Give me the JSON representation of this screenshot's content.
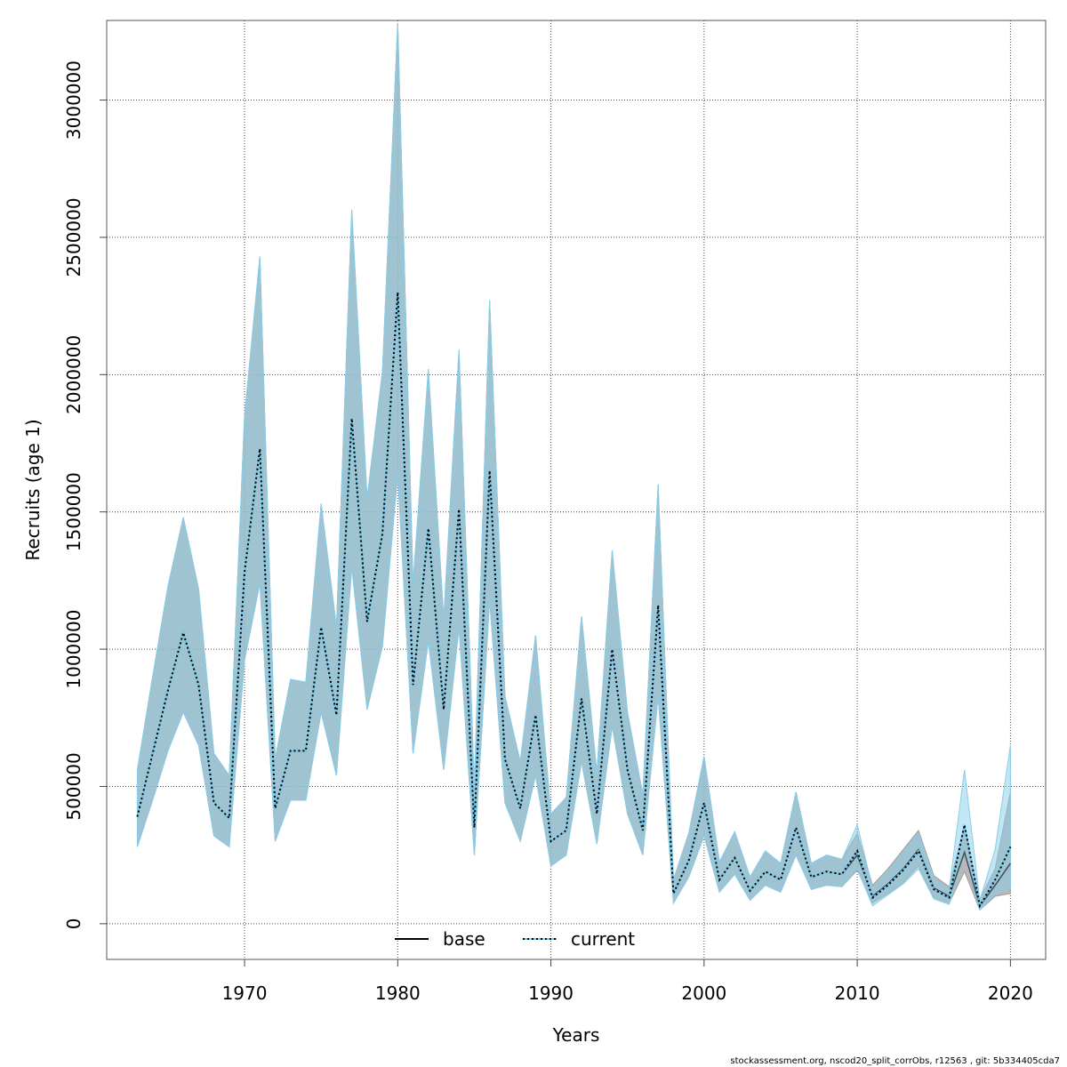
{
  "chart_data": {
    "type": "line",
    "title": "",
    "xlabel": "Years",
    "ylabel": "Recruits (age 1)",
    "xlim": [
      1961,
      2022.3
    ],
    "ylim": [
      -130000,
      3290000
    ],
    "grid": true,
    "legend_position": "bottom-center",
    "x_ticks": [
      "1970",
      "1980",
      "1990",
      "2000",
      "2010",
      "2020"
    ],
    "y_ticks": [
      "0",
      "500000",
      "1000000",
      "1500000",
      "2000000",
      "2500000",
      "3000000"
    ],
    "years": [
      1963,
      1964,
      1965,
      1966,
      1967,
      1968,
      1969,
      1970,
      1971,
      1972,
      1973,
      1974,
      1975,
      1976,
      1977,
      1978,
      1979,
      1980,
      1981,
      1982,
      1983,
      1984,
      1985,
      1986,
      1987,
      1988,
      1989,
      1990,
      1991,
      1992,
      1993,
      1994,
      1995,
      1996,
      1997,
      1998,
      1999,
      2000,
      2001,
      2002,
      2003,
      2004,
      2005,
      2006,
      2007,
      2008,
      2009,
      2010,
      2011,
      2012,
      2013,
      2014,
      2015,
      2016,
      2017,
      2018,
      2019,
      2020
    ],
    "series": [
      {
        "name": "base",
        "style": "solid",
        "color": "#000000",
        "band_color": "#a0a0a0",
        "values": [
          390000,
          620000,
          850000,
          1060000,
          870000,
          440000,
          385000,
          1280000,
          1730000,
          420000,
          630000,
          630000,
          1080000,
          760000,
          1840000,
          1100000,
          1420000,
          2300000,
          870000,
          1440000,
          780000,
          1510000,
          350000,
          1650000,
          600000,
          420000,
          760000,
          300000,
          340000,
          820000,
          400000,
          1000000,
          560000,
          340000,
          1160000,
          110000,
          230000,
          440000,
          160000,
          240000,
          120000,
          190000,
          160000,
          350000,
          170000,
          190000,
          180000,
          250000,
          100000,
          145000,
          200000,
          270000,
          130000,
          100000,
          260000,
          65000,
          140000,
          220000
        ],
        "lower": [
          280000,
          450000,
          630000,
          770000,
          650000,
          320000,
          280000,
          960000,
          1240000,
          300000,
          450000,
          450000,
          770000,
          540000,
          1300000,
          780000,
          1010000,
          1640000,
          620000,
          1030000,
          560000,
          1080000,
          250000,
          1180000,
          440000,
          300000,
          540000,
          210000,
          250000,
          590000,
          290000,
          720000,
          400000,
          250000,
          830000,
          75000,
          170000,
          320000,
          115000,
          180000,
          85000,
          140000,
          115000,
          250000,
          125000,
          140000,
          135000,
          195000,
          75000,
          110000,
          150000,
          210000,
          95000,
          75000,
          190000,
          50000,
          100000,
          110000
        ],
        "upper": [
          560000,
          900000,
          1230000,
          1480000,
          1220000,
          620000,
          540000,
          1850000,
          2430000,
          600000,
          890000,
          880000,
          1530000,
          1080000,
          2600000,
          1550000,
          2010000,
          3280000,
          1240000,
          2020000,
          1110000,
          2090000,
          500000,
          2270000,
          830000,
          590000,
          1050000,
          400000,
          460000,
          1120000,
          550000,
          1360000,
          770000,
          470000,
          1600000,
          160000,
          330000,
          610000,
          225000,
          335000,
          170000,
          265000,
          220000,
          480000,
          220000,
          250000,
          235000,
          330000,
          140000,
          200000,
          270000,
          340000,
          175000,
          135000,
          360000,
          90000,
          200000,
          480000
        ]
      },
      {
        "name": "current",
        "style": "dotted",
        "color": "#000000",
        "line_under_color": "#6ec6e8",
        "band_color": "#87ceeb",
        "values": [
          390000,
          620000,
          850000,
          1060000,
          870000,
          440000,
          385000,
          1280000,
          1730000,
          420000,
          630000,
          630000,
          1080000,
          760000,
          1840000,
          1100000,
          1420000,
          2300000,
          870000,
          1440000,
          780000,
          1510000,
          350000,
          1650000,
          600000,
          420000,
          760000,
          300000,
          340000,
          820000,
          400000,
          1000000,
          560000,
          340000,
          1160000,
          110000,
          230000,
          440000,
          160000,
          240000,
          120000,
          190000,
          160000,
          350000,
          170000,
          190000,
          180000,
          265000,
          95000,
          140000,
          195000,
          265000,
          125000,
          95000,
          360000,
          65000,
          160000,
          280000
        ],
        "lower": [
          280000,
          450000,
          630000,
          770000,
          650000,
          320000,
          280000,
          960000,
          1240000,
          300000,
          450000,
          450000,
          770000,
          540000,
          1300000,
          780000,
          1010000,
          1640000,
          620000,
          1030000,
          560000,
          1080000,
          250000,
          1180000,
          440000,
          300000,
          540000,
          210000,
          250000,
          590000,
          290000,
          720000,
          400000,
          250000,
          830000,
          75000,
          170000,
          320000,
          115000,
          180000,
          85000,
          140000,
          115000,
          250000,
          125000,
          140000,
          135000,
          200000,
          65000,
          105000,
          145000,
          200000,
          90000,
          70000,
          260000,
          50000,
          110000,
          130000
        ],
        "upper": [
          560000,
          900000,
          1230000,
          1480000,
          1220000,
          620000,
          540000,
          1850000,
          2430000,
          600000,
          890000,
          880000,
          1530000,
          1080000,
          2600000,
          1550000,
          2010000,
          3280000,
          1240000,
          2020000,
          1110000,
          2090000,
          500000,
          2270000,
          830000,
          590000,
          1050000,
          400000,
          460000,
          1120000,
          550000,
          1360000,
          770000,
          470000,
          1600000,
          160000,
          330000,
          610000,
          225000,
          335000,
          170000,
          265000,
          220000,
          480000,
          220000,
          250000,
          235000,
          360000,
          130000,
          190000,
          260000,
          330000,
          165000,
          125000,
          560000,
          85000,
          270000,
          650000
        ]
      }
    ],
    "legend": [
      "base",
      "current"
    ]
  },
  "footer": "stockassessment.org, nscod20_split_corrObs, r12563 , git: 5b334405cda7"
}
